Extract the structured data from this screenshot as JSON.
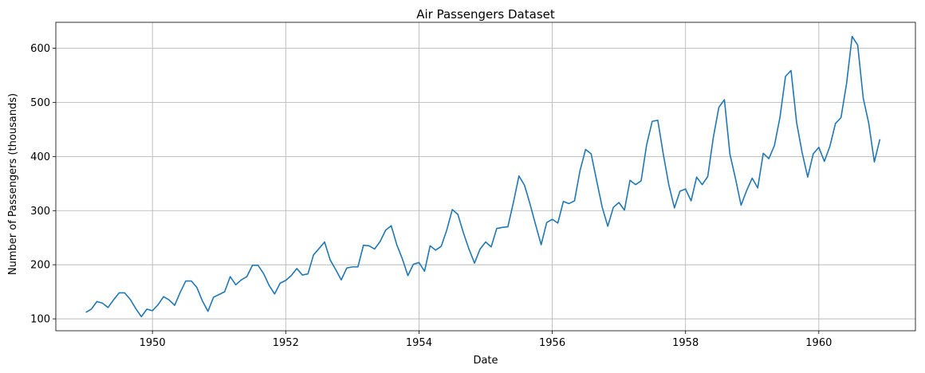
{
  "chart_data": {
    "type": "line",
    "title": "Air Passengers Dataset",
    "xlabel": "Date",
    "ylabel": "Number of Passengers (thousands)",
    "x_start": "1949-01",
    "x_frequency": "monthly",
    "xlim": [
      1948.55,
      1961.45
    ],
    "ylim": [
      78,
      648
    ],
    "xticks": [
      1950,
      1952,
      1954,
      1956,
      1958,
      1960
    ],
    "yticks": [
      100,
      200,
      300,
      400,
      500,
      600
    ],
    "grid": true,
    "colors": {
      "line": "#1f77b4",
      "grid": "#b0b0b0",
      "axes": "#000000"
    },
    "series": [
      {
        "values": [
          112,
          118,
          132,
          129,
          121,
          135,
          148,
          148,
          136,
          119,
          104,
          118,
          115,
          126,
          141,
          135,
          125,
          149,
          170,
          170,
          158,
          133,
          114,
          140,
          145,
          150,
          178,
          163,
          172,
          178,
          199,
          199,
          184,
          162,
          146,
          166,
          171,
          180,
          193,
          181,
          183,
          218,
          230,
          242,
          209,
          191,
          172,
          194,
          196,
          196,
          236,
          235,
          229,
          243,
          264,
          272,
          237,
          211,
          180,
          201,
          204,
          188,
          235,
          227,
          234,
          264,
          302,
          293,
          259,
          229,
          203,
          229,
          242,
          233,
          267,
          269,
          270,
          315,
          364,
          347,
          312,
          274,
          237,
          278,
          284,
          277,
          317,
          313,
          318,
          374,
          413,
          405,
          355,
          306,
          271,
          306,
          315,
          301,
          356,
          348,
          355,
          422,
          465,
          467,
          404,
          347,
          305,
          336,
          340,
          318,
          362,
          348,
          363,
          435,
          491,
          505,
          404,
          359,
          310,
          337,
          360,
          342,
          406,
          396,
          420,
          472,
          548,
          559,
          463,
          407,
          362,
          405,
          417,
          391,
          419,
          461,
          472,
          535,
          622,
          606,
          508,
          461,
          390,
          432
        ]
      }
    ]
  }
}
